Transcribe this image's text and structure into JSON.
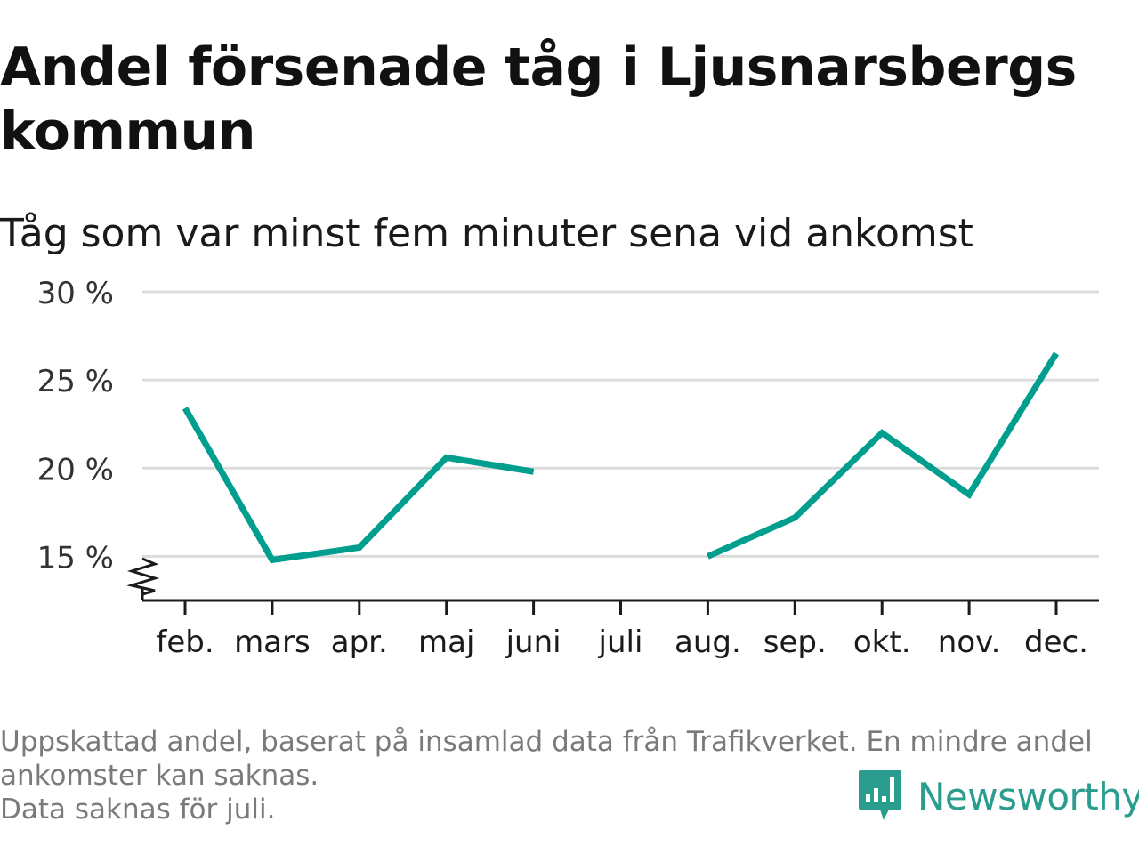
{
  "header": {
    "title": "Andel försenade tåg i Ljusnarsbergs kommun",
    "subtitle": "Tåg som var minst fem minuter sena vid ankomst"
  },
  "chart_data": {
    "type": "line",
    "categories": [
      "feb.",
      "mars",
      "apr.",
      "maj",
      "juni",
      "juli",
      "aug.",
      "sep.",
      "okt.",
      "nov.",
      "dec."
    ],
    "series": [
      {
        "values": [
          23.4,
          14.8,
          15.5,
          20.6,
          19.8,
          null,
          15.0,
          17.2,
          22.0,
          18.5,
          26.5
        ]
      }
    ],
    "ylim": [
      12.5,
      30
    ],
    "yticks": [
      15,
      20,
      25,
      30
    ],
    "ytick_labels": [
      "15 %",
      "20 %",
      "25 %",
      "30 %"
    ],
    "grid": true,
    "axis_break": true,
    "line_color": "#009e8e"
  },
  "footer": {
    "notes": [
      "Uppskattad andel, baserat på insamlad data från Trafikverket. En mindre andel",
      "ankomster kan saknas.",
      "Data saknas för juli."
    ],
    "brand": "Newsworthy",
    "brand_color": "#2a9d8f"
  }
}
